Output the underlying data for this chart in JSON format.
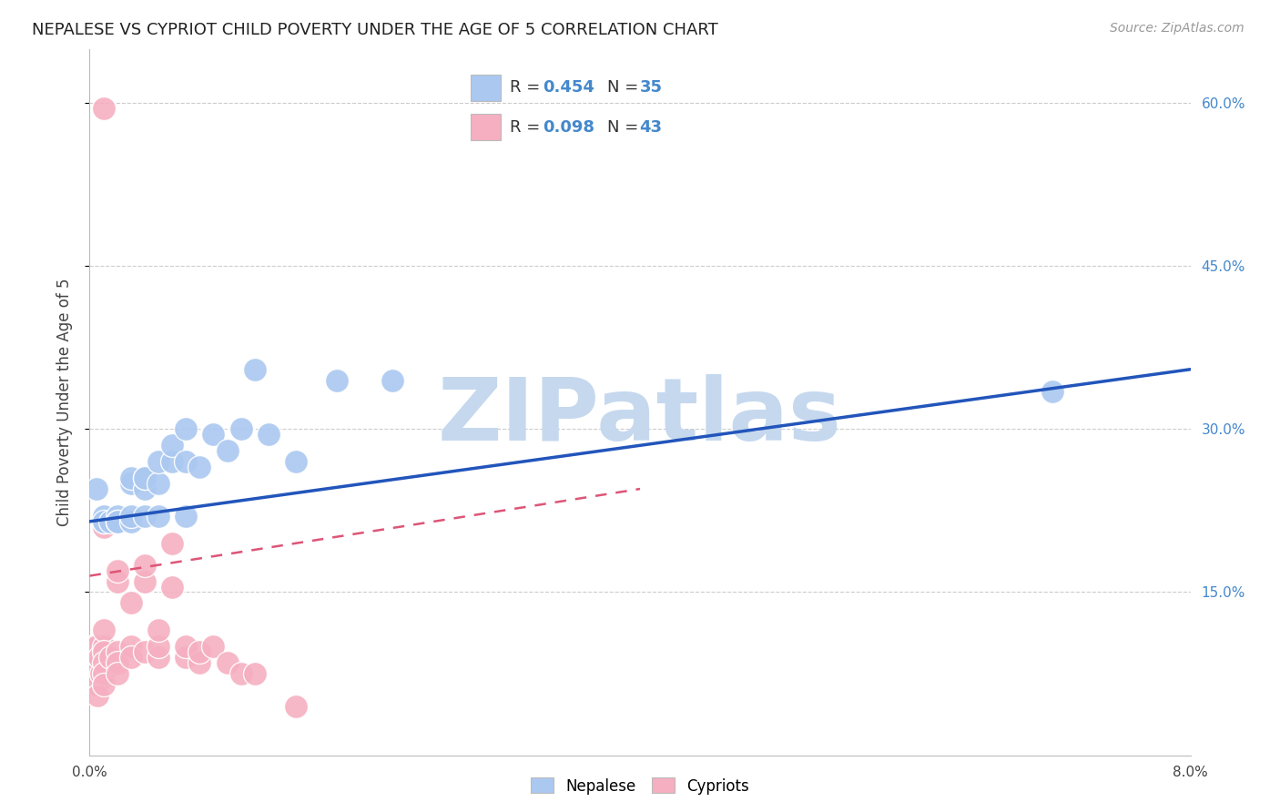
{
  "title": "NEPALESE VS CYPRIOT CHILD POVERTY UNDER THE AGE OF 5 CORRELATION CHART",
  "source": "Source: ZipAtlas.com",
  "ylabel": "Child Poverty Under the Age of 5",
  "xlim": [
    0.0,
    0.08
  ],
  "ylim": [
    0.0,
    0.65
  ],
  "xtick_positions": [
    0.0,
    0.01,
    0.02,
    0.03,
    0.04,
    0.05,
    0.06,
    0.07,
    0.08
  ],
  "xticklabels": [
    "0.0%",
    "",
    "",
    "",
    "",
    "",
    "",
    "",
    "8.0%"
  ],
  "ytick_positions": [
    0.15,
    0.3,
    0.45,
    0.6
  ],
  "ytick_labels": [
    "15.0%",
    "30.0%",
    "45.0%",
    "60.0%"
  ],
  "background_color": "#ffffff",
  "grid_color": "#cccccc",
  "nepalese_color": "#aac8f0",
  "cypriot_color": "#f5afc0",
  "nepalese_line_color": "#2255bb",
  "cypriot_line_color": "#dd5577",
  "legend_R_color": "#4488cc",
  "watermark": "ZIPatlas",
  "watermark_color": "#c5d8ee",
  "nepalese_x": [
    0.0005,
    0.001,
    0.001,
    0.001,
    0.0015,
    0.002,
    0.002,
    0.002,
    0.002,
    0.003,
    0.003,
    0.003,
    0.003,
    0.004,
    0.004,
    0.004,
    0.004,
    0.005,
    0.005,
    0.005,
    0.006,
    0.006,
    0.007,
    0.007,
    0.007,
    0.008,
    0.009,
    0.01,
    0.011,
    0.012,
    0.013,
    0.015,
    0.018,
    0.022,
    0.07
  ],
  "nepalese_y": [
    0.245,
    0.215,
    0.22,
    0.215,
    0.215,
    0.22,
    0.215,
    0.215,
    0.215,
    0.215,
    0.22,
    0.25,
    0.255,
    0.22,
    0.245,
    0.255,
    0.255,
    0.22,
    0.25,
    0.27,
    0.27,
    0.285,
    0.22,
    0.27,
    0.3,
    0.265,
    0.295,
    0.28,
    0.3,
    0.355,
    0.295,
    0.27,
    0.345,
    0.345,
    0.335
  ],
  "cypriot_x": [
    0.0002,
    0.0003,
    0.0004,
    0.0005,
    0.0005,
    0.0006,
    0.0006,
    0.0007,
    0.0008,
    0.001,
    0.001,
    0.001,
    0.001,
    0.001,
    0.001,
    0.001,
    0.0015,
    0.002,
    0.002,
    0.002,
    0.002,
    0.002,
    0.003,
    0.003,
    0.003,
    0.004,
    0.004,
    0.004,
    0.005,
    0.005,
    0.005,
    0.006,
    0.006,
    0.007,
    0.007,
    0.008,
    0.008,
    0.009,
    0.01,
    0.011,
    0.012,
    0.015,
    0.001
  ],
  "cypriot_y": [
    0.09,
    0.1,
    0.09,
    0.1,
    0.075,
    0.065,
    0.055,
    0.09,
    0.075,
    0.1,
    0.115,
    0.095,
    0.085,
    0.075,
    0.065,
    0.21,
    0.09,
    0.095,
    0.085,
    0.075,
    0.16,
    0.17,
    0.14,
    0.1,
    0.09,
    0.095,
    0.16,
    0.175,
    0.09,
    0.1,
    0.115,
    0.155,
    0.195,
    0.09,
    0.1,
    0.085,
    0.095,
    0.1,
    0.085,
    0.075,
    0.075,
    0.045,
    0.595
  ],
  "nepalese_line_x": [
    0.0,
    0.08
  ],
  "nepalese_line_y": [
    0.215,
    0.355
  ],
  "cypriot_line_x": [
    0.0,
    0.04
  ],
  "cypriot_line_y": [
    0.165,
    0.245
  ]
}
